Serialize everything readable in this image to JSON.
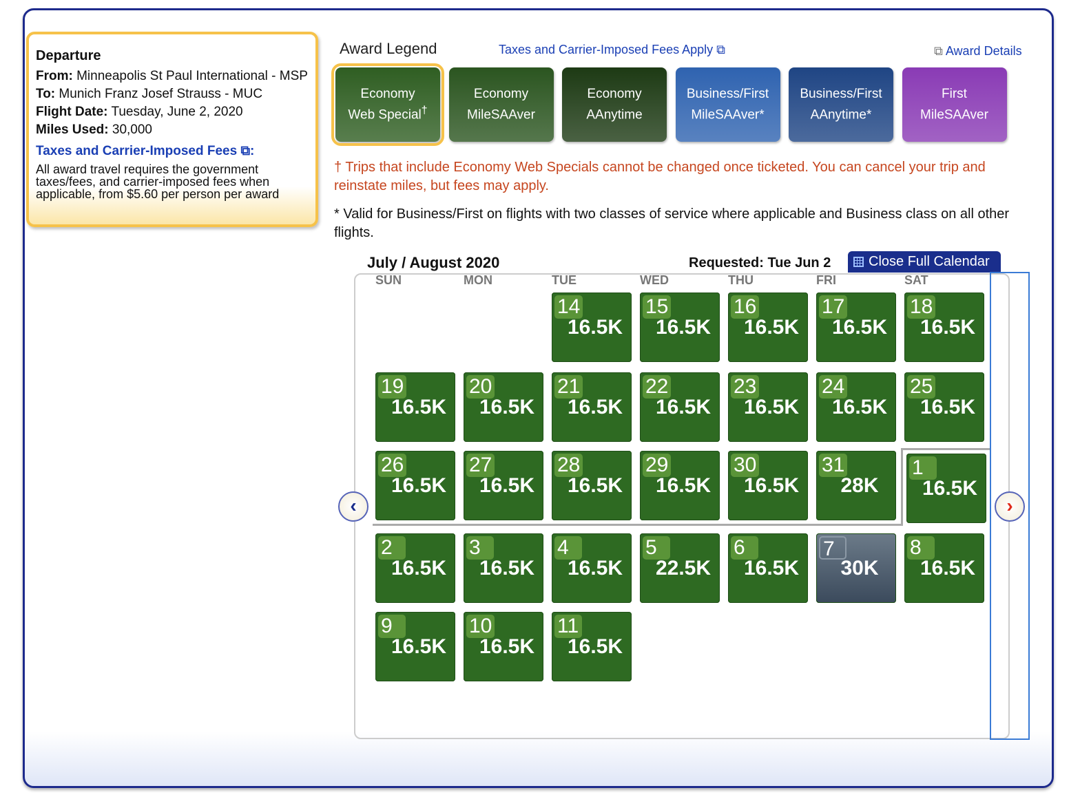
{
  "departure": {
    "title": "Departure",
    "from_label": "From:",
    "from": "Minneapolis St Paul International - MSP",
    "to_label": "To:",
    "to": "Munich Franz Josef Strauss - MUC",
    "date_label": "Flight Date:",
    "date": "Tuesday, June 2, 2020",
    "miles_label": "Miles Used:",
    "miles": "30,000",
    "fees_link": "Taxes and Carrier-Imposed Fees",
    "fees_note": "All award travel requires the government taxes/fees, and carrier-imposed fees when applicable, from $5.60 per person per award"
  },
  "legend": {
    "title": "Award Legend",
    "taxes_link": "Taxes and Carrier-Imposed Fees Apply",
    "award_details": "Award Details",
    "items": [
      {
        "l1": "Economy",
        "l2": "Web Special",
        "sup": "†",
        "color": "#2f5e22"
      },
      {
        "l1": "Economy",
        "l2": "MileSAAver",
        "sup": "",
        "color": "#2b5520"
      },
      {
        "l1": "Economy",
        "l2": "AAnytime",
        "sup": "",
        "color": "#1d3a14"
      },
      {
        "l1": "Business/First",
        "l2": "MileSAAver*",
        "sup": "",
        "color": "#2f63b0"
      },
      {
        "l1": "Business/First",
        "l2": "AAnytime*",
        "sup": "",
        "color": "#1f4584"
      },
      {
        "l1": "First",
        "l2": "MileSAAver",
        "sup": "",
        "color": "#8a3bb5"
      }
    ]
  },
  "notes": {
    "web_special": "† Trips that include Economy Web Specials cannot be changed once ticketed. You can cancel your trip and reinstate miles, but fees may apply.",
    "business": "* Valid for Business/First on flights with two classes of service where applicable and Business class on all other flights."
  },
  "calendar": {
    "title": "July / August 2020",
    "requested": "Requested: Tue Jun 2",
    "close_button": "Close Full Calendar",
    "days_of_week": [
      "SUN",
      "MON",
      "TUE",
      "WED",
      "THU",
      "FRI",
      "SAT"
    ],
    "weeks": [
      [
        null,
        null,
        {
          "d": "14",
          "m": "16.5K"
        },
        {
          "d": "15",
          "m": "16.5K"
        },
        {
          "d": "16",
          "m": "16.5K"
        },
        {
          "d": "17",
          "m": "16.5K"
        },
        {
          "d": "18",
          "m": "16.5K"
        }
      ],
      [
        {
          "d": "19",
          "m": "16.5K"
        },
        {
          "d": "20",
          "m": "16.5K"
        },
        {
          "d": "21",
          "m": "16.5K"
        },
        {
          "d": "22",
          "m": "16.5K"
        },
        {
          "d": "23",
          "m": "16.5K"
        },
        {
          "d": "24",
          "m": "16.5K"
        },
        {
          "d": "25",
          "m": "16.5K"
        }
      ],
      [
        {
          "d": "26",
          "m": "16.5K"
        },
        {
          "d": "27",
          "m": "16.5K"
        },
        {
          "d": "28",
          "m": "16.5K"
        },
        {
          "d": "29",
          "m": "16.5K"
        },
        {
          "d": "30",
          "m": "16.5K"
        },
        {
          "d": "31",
          "m": "28K"
        },
        {
          "d": "1",
          "m": "16.5K"
        }
      ],
      [
        {
          "d": "2",
          "m": "16.5K"
        },
        {
          "d": "3",
          "m": "16.5K"
        },
        {
          "d": "4",
          "m": "16.5K"
        },
        {
          "d": "5",
          "m": "22.5K"
        },
        {
          "d": "6",
          "m": "16.5K"
        },
        {
          "d": "7",
          "m": "30K",
          "gray": true
        },
        {
          "d": "8",
          "m": "16.5K"
        }
      ],
      [
        {
          "d": "9",
          "m": "16.5K"
        },
        {
          "d": "10",
          "m": "16.5K"
        },
        {
          "d": "11",
          "m": "16.5K"
        },
        null,
        null,
        null,
        null
      ]
    ],
    "prev_icon": "chevron-left-icon",
    "next_icon": "chevron-right-icon"
  }
}
